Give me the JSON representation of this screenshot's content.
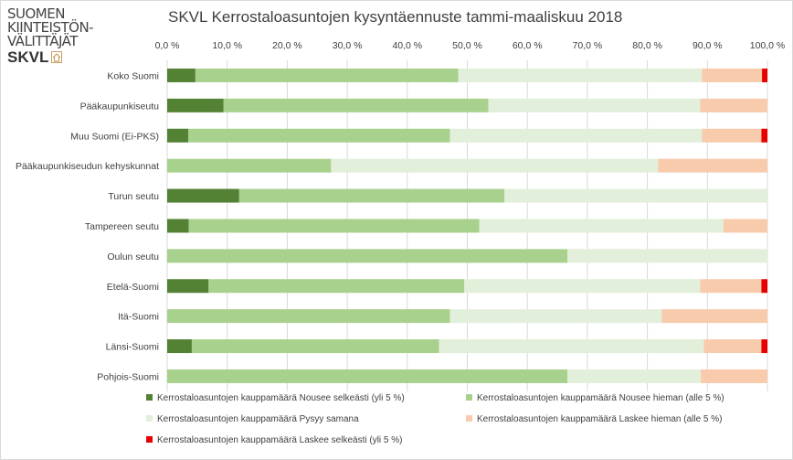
{
  "logo": {
    "lines": [
      "SUOMEN",
      "KIINTEISTÖN-",
      "VÄLITTÄJÄT"
    ],
    "brand": "SKVL"
  },
  "chart_data": {
    "type": "bar",
    "orientation": "horizontal",
    "stacked": "percent",
    "title": "SKVL Kerrostaloasuntojen kysyntäennuste tammi-maaliskuu 2018",
    "xlim": [
      0,
      100
    ],
    "x_ticks": [
      "0,0 %",
      "10,0 %",
      "20,0 %",
      "30,0 %",
      "40,0 %",
      "50,0 %",
      "60,0 %",
      "70,0 %",
      "80,0 %",
      "90,0 %",
      "100,0 %"
    ],
    "grid": true,
    "legend_position": "bottom",
    "categories": [
      "Koko Suomi",
      "Pääkaupunkiseutu",
      "Muu Suomi (Ei-PKS)",
      "Pääkaupunkiseudun kehyskunnat",
      "Turun seutu",
      "Tampereen seutu",
      "Oulun seutu",
      "Etelä-Suomi",
      "Itä-Suomi",
      "Länsi-Suomi",
      "Pohjois-Suomi"
    ],
    "series": [
      {
        "name": "Kerrostaloasuntojen kauppamäärä Nousee selkeästi (yli 5 %)",
        "color": "#548235",
        "values": [
          4.7,
          9.4,
          3.5,
          0,
          12.0,
          3.6,
          0,
          6.9,
          0,
          4.1,
          0
        ]
      },
      {
        "name": "Kerrostaloasuntojen kauppamäärä Nousee hieman (alle 5 %)",
        "color": "#a9d18e",
        "values": [
          43.8,
          44.1,
          43.6,
          27.3,
          44.2,
          48.4,
          66.7,
          42.6,
          47.1,
          41.2,
          66.7
        ]
      },
      {
        "name": "Kerrostaloasuntojen kauppamäärä Pysyy samana",
        "color": "#e2efda",
        "values": [
          40.6,
          35.3,
          42.0,
          54.5,
          43.8,
          40.7,
          33.3,
          39.3,
          35.3,
          44.1,
          22.2
        ]
      },
      {
        "name": "Kerrostaloasuntojen kauppamäärä Laskee hieman (alle 5 %)",
        "color": "#f8cbad",
        "values": [
          10.0,
          11.2,
          9.9,
          18.2,
          0,
          7.3,
          0,
          10.2,
          17.6,
          9.6,
          11.1
        ]
      },
      {
        "name": "Kerrostaloasuntojen kauppamäärä Laskee selkeästi (yli 5 %)",
        "color": "#e60000",
        "values": [
          0.9,
          0,
          1.0,
          0,
          0,
          0,
          0,
          1.0,
          0,
          1.0,
          0
        ]
      }
    ]
  }
}
